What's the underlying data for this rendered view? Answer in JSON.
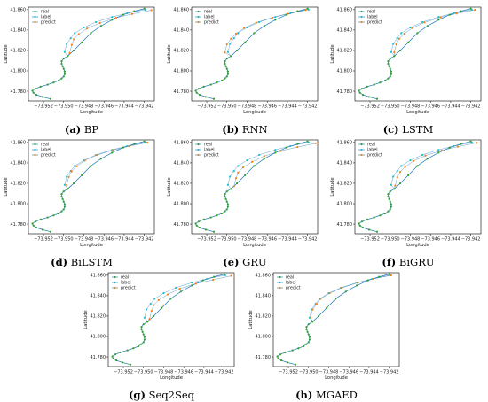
{
  "figure": {
    "captions": [
      {
        "letter": "(a)",
        "name": "BP"
      },
      {
        "letter": "(b)",
        "name": "RNN"
      },
      {
        "letter": "(c)",
        "name": "LSTM"
      },
      {
        "letter": "(d)",
        "name": "BiLSTM"
      },
      {
        "letter": "(e)",
        "name": "GRU"
      },
      {
        "letter": "(f)",
        "name": "BiGRU"
      },
      {
        "letter": "(g)",
        "name": "Seq2Seq"
      },
      {
        "letter": "(h)",
        "name": "MGAED"
      }
    ]
  },
  "colors": {
    "real": "#2ca02c",
    "label": "#17becf",
    "predict": "#ff7f0e",
    "line": "#1f77b4"
  },
  "chart_data": {
    "type": "scatter",
    "xlabel": "Longitude",
    "ylabel": "Latitude",
    "xlim": [
      -73.9535,
      -73.941
    ],
    "ylim": [
      41.7705,
      41.8625
    ],
    "xticks": [
      -73.952,
      -73.95,
      -73.948,
      -73.946,
      -73.944,
      -73.942
    ],
    "xtick_labels": [
      "−73.952",
      "−73.950",
      "−73.948",
      "−73.946",
      "−73.944",
      "−73.942"
    ],
    "yticks": [
      41.78,
      41.8,
      41.82,
      41.84,
      41.86
    ],
    "ytick_labels": [
      "41.780",
      "41.800",
      "41.820",
      "41.840",
      "41.860"
    ],
    "legend": [
      "real",
      "label",
      "predict"
    ],
    "legend_position": "top-left",
    "real_track": {
      "x": [
        -73.9513,
        -73.9521,
        -73.9527,
        -73.953,
        -73.9531,
        -73.9528,
        -73.9523,
        -73.9516,
        -73.951,
        -73.9505,
        -73.9502,
        -73.95,
        -73.9499,
        -73.9499,
        -73.95,
        -73.9501,
        -73.9502,
        -73.9502,
        -73.95,
        -73.9496,
        -73.949,
        -73.9482,
        -73.9473,
        -73.9463,
        -73.9452,
        -73.9441,
        -73.943,
        -73.942
      ],
      "y": [
        41.7725,
        41.7745,
        41.7765,
        41.7785,
        41.7805,
        41.7825,
        41.7845,
        41.7865,
        41.7885,
        41.7905,
        41.7925,
        41.7945,
        41.797,
        41.7995,
        41.802,
        41.8045,
        41.807,
        41.8095,
        41.812,
        41.8145,
        41.82,
        41.828,
        41.837,
        41.844,
        41.85,
        41.855,
        41.8585,
        41.861
      ]
    },
    "series": [
      {
        "name": "BP",
        "label": {
          "x": [
            -73.9499,
            -73.9497,
            -73.9493,
            -73.9489,
            -73.948,
            -73.9468,
            -73.9452,
            -73.9437,
            -73.9419
          ],
          "y": [
            41.8185,
            41.8265,
            41.832,
            41.837,
            41.8425,
            41.8478,
            41.8528,
            41.8565,
            41.86
          ]
        },
        "predict": {
          "x": [
            -73.9494,
            -73.9492,
            -73.949,
            -73.9485,
            -73.9477,
            -73.9464,
            -73.9448,
            -73.9432,
            -73.9413
          ],
          "y": [
            41.8175,
            41.8255,
            41.831,
            41.836,
            41.8415,
            41.847,
            41.852,
            41.8558,
            41.8595
          ]
        }
      },
      {
        "name": "RNN",
        "label": {
          "x": [
            -73.9499,
            -73.9497,
            -73.9493,
            -73.9489,
            -73.948,
            -73.9468,
            -73.9452,
            -73.9437,
            -73.9419
          ],
          "y": [
            41.8185,
            41.8265,
            41.832,
            41.837,
            41.8425,
            41.8478,
            41.8528,
            41.8565,
            41.86
          ]
        },
        "predict": {
          "x": [
            -73.9502,
            -73.95,
            -73.9496,
            -73.9491,
            -73.9483,
            -73.9471,
            -73.9455,
            -73.944,
            -73.9422
          ],
          "y": [
            41.818,
            41.826,
            41.8315,
            41.8365,
            41.842,
            41.8473,
            41.8522,
            41.856,
            41.8597
          ]
        }
      },
      {
        "name": "LSTM",
        "label": {
          "x": [
            -73.9499,
            -73.9497,
            -73.9493,
            -73.9489,
            -73.948,
            -73.9468,
            -73.9452,
            -73.9437,
            -73.9419
          ],
          "y": [
            41.8185,
            41.8265,
            41.832,
            41.837,
            41.8425,
            41.8478,
            41.8528,
            41.8565,
            41.86
          ]
        },
        "predict": {
          "x": [
            -73.9496,
            -73.9494,
            -73.9491,
            -73.9486,
            -73.9478,
            -73.9466,
            -73.945,
            -73.9434,
            -73.9416
          ],
          "y": [
            41.818,
            41.826,
            41.8315,
            41.8365,
            41.842,
            41.8474,
            41.8525,
            41.8562,
            41.8598
          ]
        }
      },
      {
        "name": "BiLSTM",
        "label": {
          "x": [
            -73.9499,
            -73.9497,
            -73.9493,
            -73.9489,
            -73.948,
            -73.9468,
            -73.9452,
            -73.9437,
            -73.9419
          ],
          "y": [
            41.8185,
            41.8265,
            41.832,
            41.837,
            41.8425,
            41.8478,
            41.8528,
            41.8565,
            41.86
          ]
        },
        "predict": {
          "x": [
            -73.9497,
            -73.9495,
            -73.9492,
            -73.9487,
            -73.9479,
            -73.9467,
            -73.9451,
            -73.9435,
            -73.9417
          ],
          "y": [
            41.8182,
            41.8262,
            41.8317,
            41.8367,
            41.8422,
            41.8476,
            41.8526,
            41.8563,
            41.8599
          ]
        }
      },
      {
        "name": "GRU",
        "label": {
          "x": [
            -73.9499,
            -73.9497,
            -73.9493,
            -73.9489,
            -73.948,
            -73.9468,
            -73.9452,
            -73.9437,
            -73.9419
          ],
          "y": [
            41.8185,
            41.8265,
            41.832,
            41.837,
            41.8425,
            41.8478,
            41.8528,
            41.8565,
            41.86
          ]
        },
        "predict": {
          "x": [
            -73.9493,
            -73.9491,
            -73.9489,
            -73.9484,
            -73.9475,
            -73.9463,
            -73.9447,
            -73.943,
            -73.9412
          ],
          "y": [
            41.817,
            41.825,
            41.8305,
            41.8355,
            41.841,
            41.8466,
            41.8516,
            41.8555,
            41.8592
          ]
        }
      },
      {
        "name": "BiGRU",
        "label": {
          "x": [
            -73.9499,
            -73.9497,
            -73.9493,
            -73.9489,
            -73.948,
            -73.9468,
            -73.9452,
            -73.9437,
            -73.9419
          ],
          "y": [
            41.8185,
            41.8265,
            41.832,
            41.837,
            41.8425,
            41.8478,
            41.8528,
            41.8565,
            41.86
          ]
        },
        "predict": {
          "x": [
            -73.9495,
            -73.9493,
            -73.949,
            -73.9485,
            -73.9477,
            -73.9465,
            -73.9449,
            -73.9433,
            -73.9414
          ],
          "y": [
            41.8177,
            41.8257,
            41.8312,
            41.8362,
            41.8417,
            41.8471,
            41.8521,
            41.8559,
            41.8596
          ]
        }
      },
      {
        "name": "Seq2Seq",
        "label": {
          "x": [
            -73.9499,
            -73.9497,
            -73.9493,
            -73.9489,
            -73.948,
            -73.9468,
            -73.9452,
            -73.9437,
            -73.9419
          ],
          "y": [
            41.8185,
            41.8265,
            41.832,
            41.837,
            41.8425,
            41.8478,
            41.8528,
            41.8565,
            41.86
          ]
        },
        "predict": {
          "x": [
            -73.9494,
            -73.9492,
            -73.949,
            -73.9485,
            -73.9476,
            -73.9464,
            -73.9448,
            -73.9431,
            -73.9413
          ],
          "y": [
            41.8172,
            41.8252,
            41.8307,
            41.8357,
            41.8412,
            41.8468,
            41.8518,
            41.8556,
            41.8594
          ]
        }
      },
      {
        "name": "MGAED",
        "label": {
          "x": [
            -73.9499,
            -73.9497,
            -73.9493,
            -73.9489,
            -73.948,
            -73.9468,
            -73.9452,
            -73.9437,
            -73.9419
          ],
          "y": [
            41.8185,
            41.8265,
            41.832,
            41.837,
            41.8425,
            41.8478,
            41.8528,
            41.8565,
            41.86
          ]
        },
        "predict": {
          "x": [
            -73.9498,
            -73.9496,
            -73.9492,
            -73.9488,
            -73.9479,
            -73.9467,
            -73.9451,
            -73.9436,
            -73.9418
          ],
          "y": [
            41.8184,
            41.8264,
            41.8319,
            41.8369,
            41.8424,
            41.8477,
            41.8527,
            41.8564,
            41.8599
          ]
        }
      }
    ]
  }
}
